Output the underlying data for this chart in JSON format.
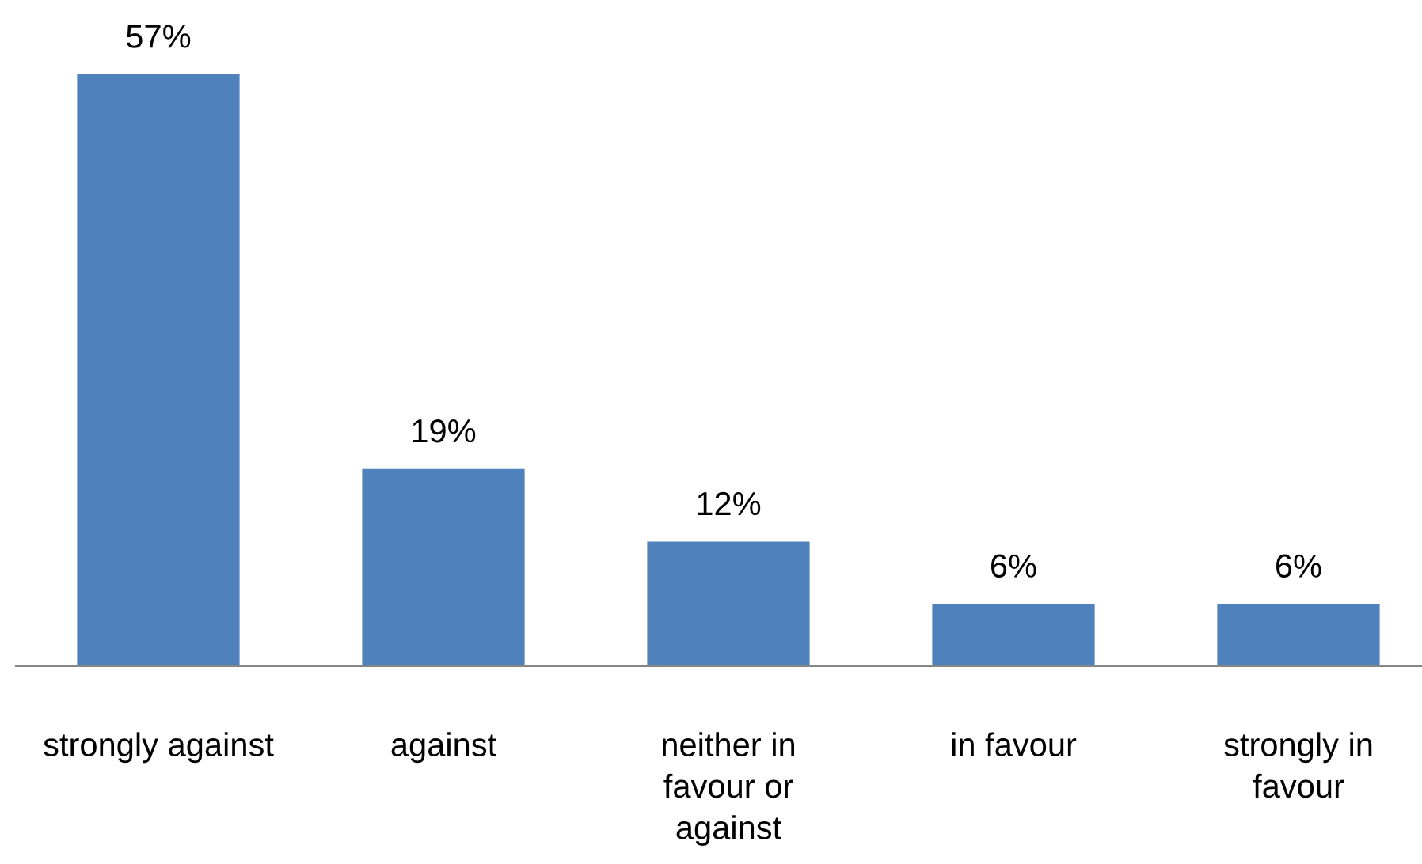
{
  "chart_data": {
    "type": "bar",
    "categories": [
      "strongly against",
      "against",
      "neither in\nfavour or\nagainst",
      "in favour",
      "strongly in\nfavour"
    ],
    "values": [
      57,
      19,
      12,
      6,
      6
    ],
    "value_labels": [
      "57%",
      "19%",
      "12%",
      "6%",
      "6%"
    ],
    "color": "#4f81bd",
    "grid": false,
    "legend": false,
    "tick_labels": "x"
  }
}
